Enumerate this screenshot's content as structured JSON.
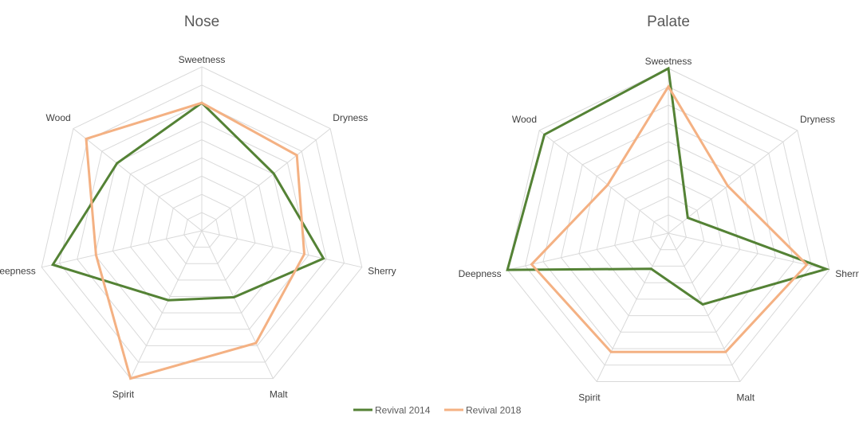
{
  "chart_data": [
    {
      "type": "radar",
      "title": "Nose",
      "categories": [
        "Sweetness",
        "Dryness",
        "Sherry",
        "Malt",
        "Spirit",
        "Deepness",
        "Wood"
      ],
      "rlim": [
        0,
        10
      ],
      "gridlines": 9,
      "series": [
        {
          "name": "Revival 2014",
          "values": [
            7.8,
            5.6,
            7.6,
            4.5,
            4.7,
            9.3,
            6.6
          ]
        },
        {
          "name": "Revival 2018",
          "values": [
            7.8,
            7.4,
            6.4,
            7.6,
            10.0,
            6.6,
            9.0
          ]
        }
      ]
    },
    {
      "type": "radar",
      "title": "Palate",
      "categories": [
        "Sweetness",
        "Dryness",
        "Sherry",
        "Malt",
        "Spirit",
        "Deepness",
        "Wood"
      ],
      "rlim": [
        0,
        10
      ],
      "gridlines": 9,
      "series": [
        {
          "name": "Revival 2014",
          "values": [
            10.0,
            1.5,
            9.8,
            4.8,
            2.4,
            10.0,
            9.6
          ]
        },
        {
          "name": "Revival 2018",
          "values": [
            8.9,
            4.6,
            8.6,
            8.0,
            8.0,
            8.5,
            4.7
          ]
        }
      ]
    }
  ],
  "legend": {
    "position": "bottom",
    "items": [
      {
        "label": "Revival 2014",
        "color": "#548235"
      },
      {
        "label": "Revival 2018",
        "color": "#f4b183"
      }
    ]
  }
}
